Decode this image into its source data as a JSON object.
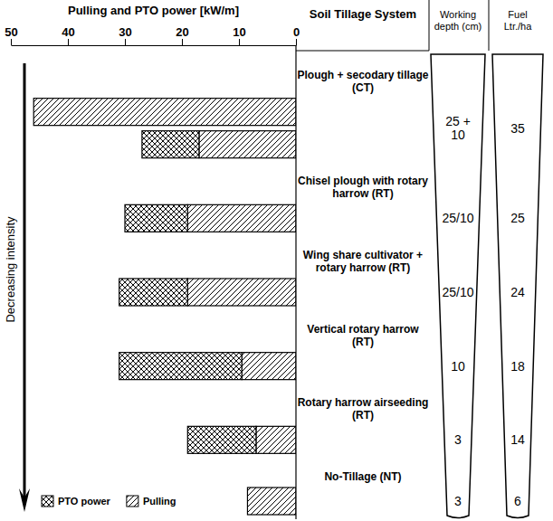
{
  "chart_data": {
    "type": "bar",
    "orientation": "horizontal",
    "stacked": true,
    "x_label": "Pulling and PTO power [kW/m]",
    "xlim": [
      0,
      50
    ],
    "xticks": [
      0,
      10,
      20,
      30,
      40,
      50
    ],
    "categories": [
      "Plough + secodary tillage (CT)",
      null,
      "Chisel plough with rotary harrow (RT)",
      "Wing share cultivator + rotary harrow (RT)",
      "Vertical rotary harrow (RT)",
      "Rotary harrow airseeding (RT)",
      "No-Tillage (NT)"
    ],
    "series": [
      {
        "name": "Pulling",
        "color": "#000000",
        "marker": "diagonal",
        "values": [
          46,
          17,
          19,
          19,
          9.5,
          7,
          8.5
        ]
      },
      {
        "name": "PTO power",
        "color": "#000000",
        "marker": "crosshatch",
        "values": [
          null,
          10,
          11,
          12,
          21.5,
          12,
          null
        ]
      }
    ],
    "column_headers": [
      "Soil Tillage System",
      "Working depth (cm)",
      "Fuel Ltr./ha"
    ],
    "depth": [
      "25 + 10",
      null,
      "25/10",
      "25/10",
      "10",
      "3",
      "3"
    ],
    "fuel": [
      35,
      null,
      25,
      24,
      18,
      14,
      6
    ],
    "annotations": [
      "Decreasing intensity"
    ],
    "legend": "lower left",
    "grid": false
  }
}
